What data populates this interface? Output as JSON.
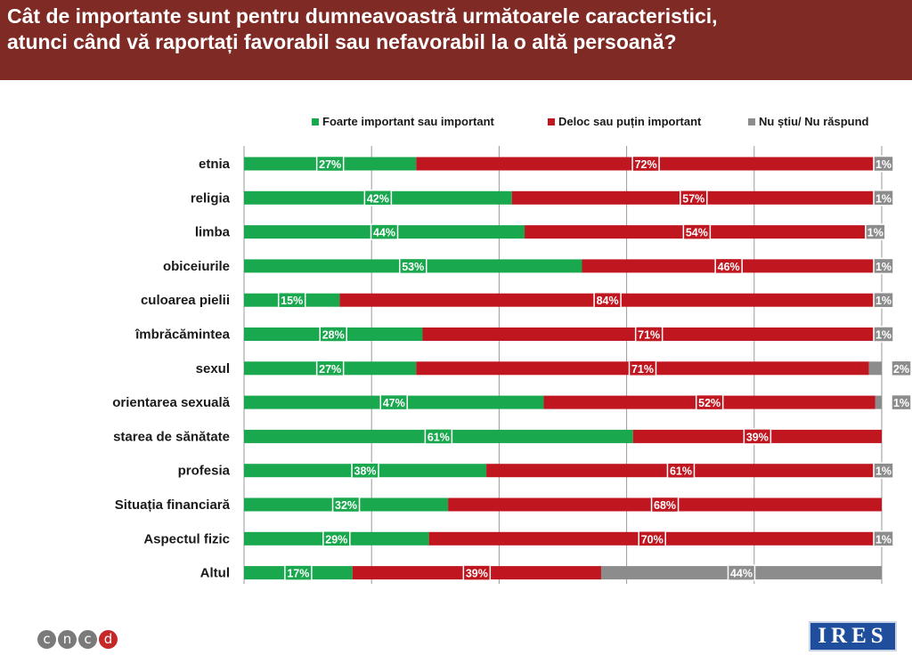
{
  "header": {
    "title_line1": "Cât de importante sunt pentru dumneavoastră următoarele caracteristici,",
    "title_line2": "atunci când vă raportați favorabil sau nefavorabil la o altă persoană?"
  },
  "logos": {
    "cncd_letters": [
      "c",
      "n",
      "c",
      "d"
    ],
    "ires": "IRES"
  },
  "colors": {
    "header_bg": "#7f2a24",
    "green": "#1aa84e",
    "red": "#c0161f",
    "gray": "#8c8c8c",
    "grid": "#9a9a9a"
  },
  "chart_data": {
    "type": "bar",
    "orientation": "horizontal",
    "stacked": true,
    "title": "",
    "xlabel": "",
    "ylabel": "",
    "xlim": [
      0,
      100
    ],
    "grid": true,
    "legend_position": "top-right",
    "value_suffix": "%",
    "categories": [
      "etnia",
      "religia",
      "limba",
      "obiceiurile",
      "culoarea pielii",
      "îmbrăcămintea",
      "sexul",
      "orientarea sexuală",
      "starea de sănătate",
      "profesia",
      "Situația financiară",
      "Aspectul fizic",
      "Altul"
    ],
    "series": [
      {
        "name": "Foarte important sau important",
        "color": "#1aa84e",
        "values": [
          27,
          42,
          44,
          53,
          15,
          28,
          27,
          47,
          61,
          38,
          32,
          29,
          17
        ]
      },
      {
        "name": "Deloc sau puțin important",
        "color": "#c0161f",
        "values": [
          72,
          57,
          54,
          46,
          84,
          71,
          71,
          52,
          39,
          61,
          68,
          70,
          39
        ]
      },
      {
        "name": "Nu știu/ Nu răspund",
        "color": "#8c8c8c",
        "values": [
          1,
          1,
          1,
          1,
          1,
          1,
          2,
          1,
          null,
          1,
          null,
          1,
          44
        ]
      }
    ]
  }
}
